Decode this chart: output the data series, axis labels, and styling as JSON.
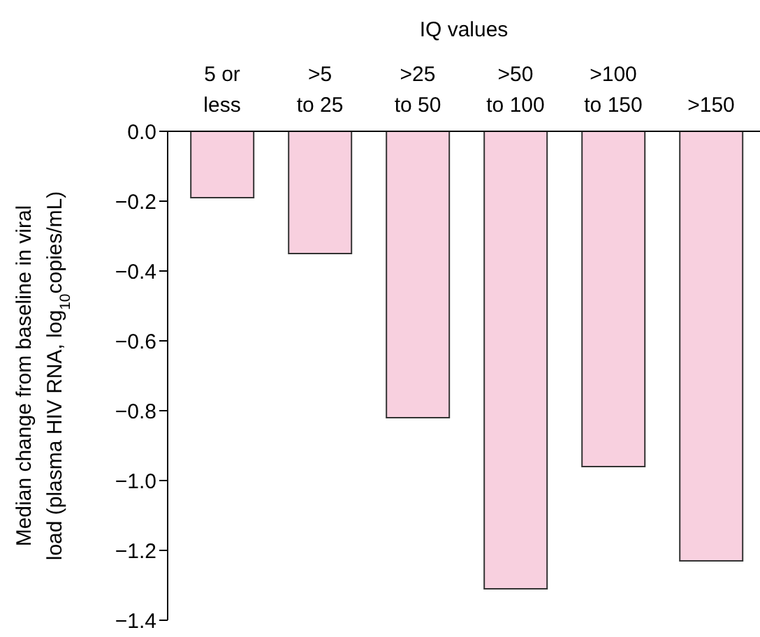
{
  "chart_data": {
    "type": "bar",
    "xlabel": "IQ values",
    "ylabel": "Median change from baseline in viral\nload (plasma HIV RNA, log$_{10}$copies/mL)",
    "categories": [
      "5 or\nless",
      ">5\nto 25",
      ">25\nto 50",
      ">50\nto 100",
      ">100\nto 150",
      ">150"
    ],
    "values": [
      -0.19,
      -0.35,
      -0.82,
      -1.31,
      -0.96,
      -1.23
    ],
    "color": "#f8d0df",
    "ylim": [
      -1.4,
      0
    ],
    "yticks": [
      {
        "value": 0,
        "label": "0.0"
      },
      {
        "value": -0.2,
        "label": "−0.2"
      },
      {
        "value": -0.4,
        "label": "−0.4"
      },
      {
        "value": -0.6,
        "label": "−0.6"
      },
      {
        "value": -0.8,
        "label": "−0.8"
      },
      {
        "value": -1.0,
        "label": "−1.0"
      },
      {
        "value": -1.2,
        "label": "−1.2"
      },
      {
        "value": -1.4,
        "label": "−1.4"
      }
    ],
    "grid": false,
    "legend": false
  }
}
